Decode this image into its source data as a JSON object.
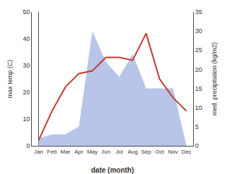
{
  "chart_data": {
    "type": "line",
    "categories": [
      "Jan",
      "Feb",
      "Mar",
      "Apr",
      "May",
      "Jun",
      "Jul",
      "Aug",
      "Sep",
      "Oct",
      "Nov",
      "Dec"
    ],
    "xlabel": "date (month)",
    "ylabel": "max temp (C)",
    "y2label": "med. precipitation (kg/m2)",
    "series": [
      {
        "type": "area",
        "axis": "y2",
        "color": "#b8c4e8",
        "values": [
          2,
          3,
          3,
          5,
          30,
          22,
          18,
          24,
          15,
          15,
          15,
          0
        ]
      },
      {
        "type": "line",
        "color": "#c0392b",
        "values": [
          2,
          13,
          22,
          27,
          28,
          33,
          33,
          32,
          42,
          25,
          18,
          13
        ]
      }
    ],
    "ylim": [
      0,
      50
    ],
    "yticks": [
      0,
      10,
      20,
      30,
      40,
      50
    ],
    "y2lim": [
      0,
      35
    ],
    "y2ticks": [
      0,
      5,
      10,
      15,
      20,
      25,
      30,
      35
    ],
    "grid": false
  }
}
